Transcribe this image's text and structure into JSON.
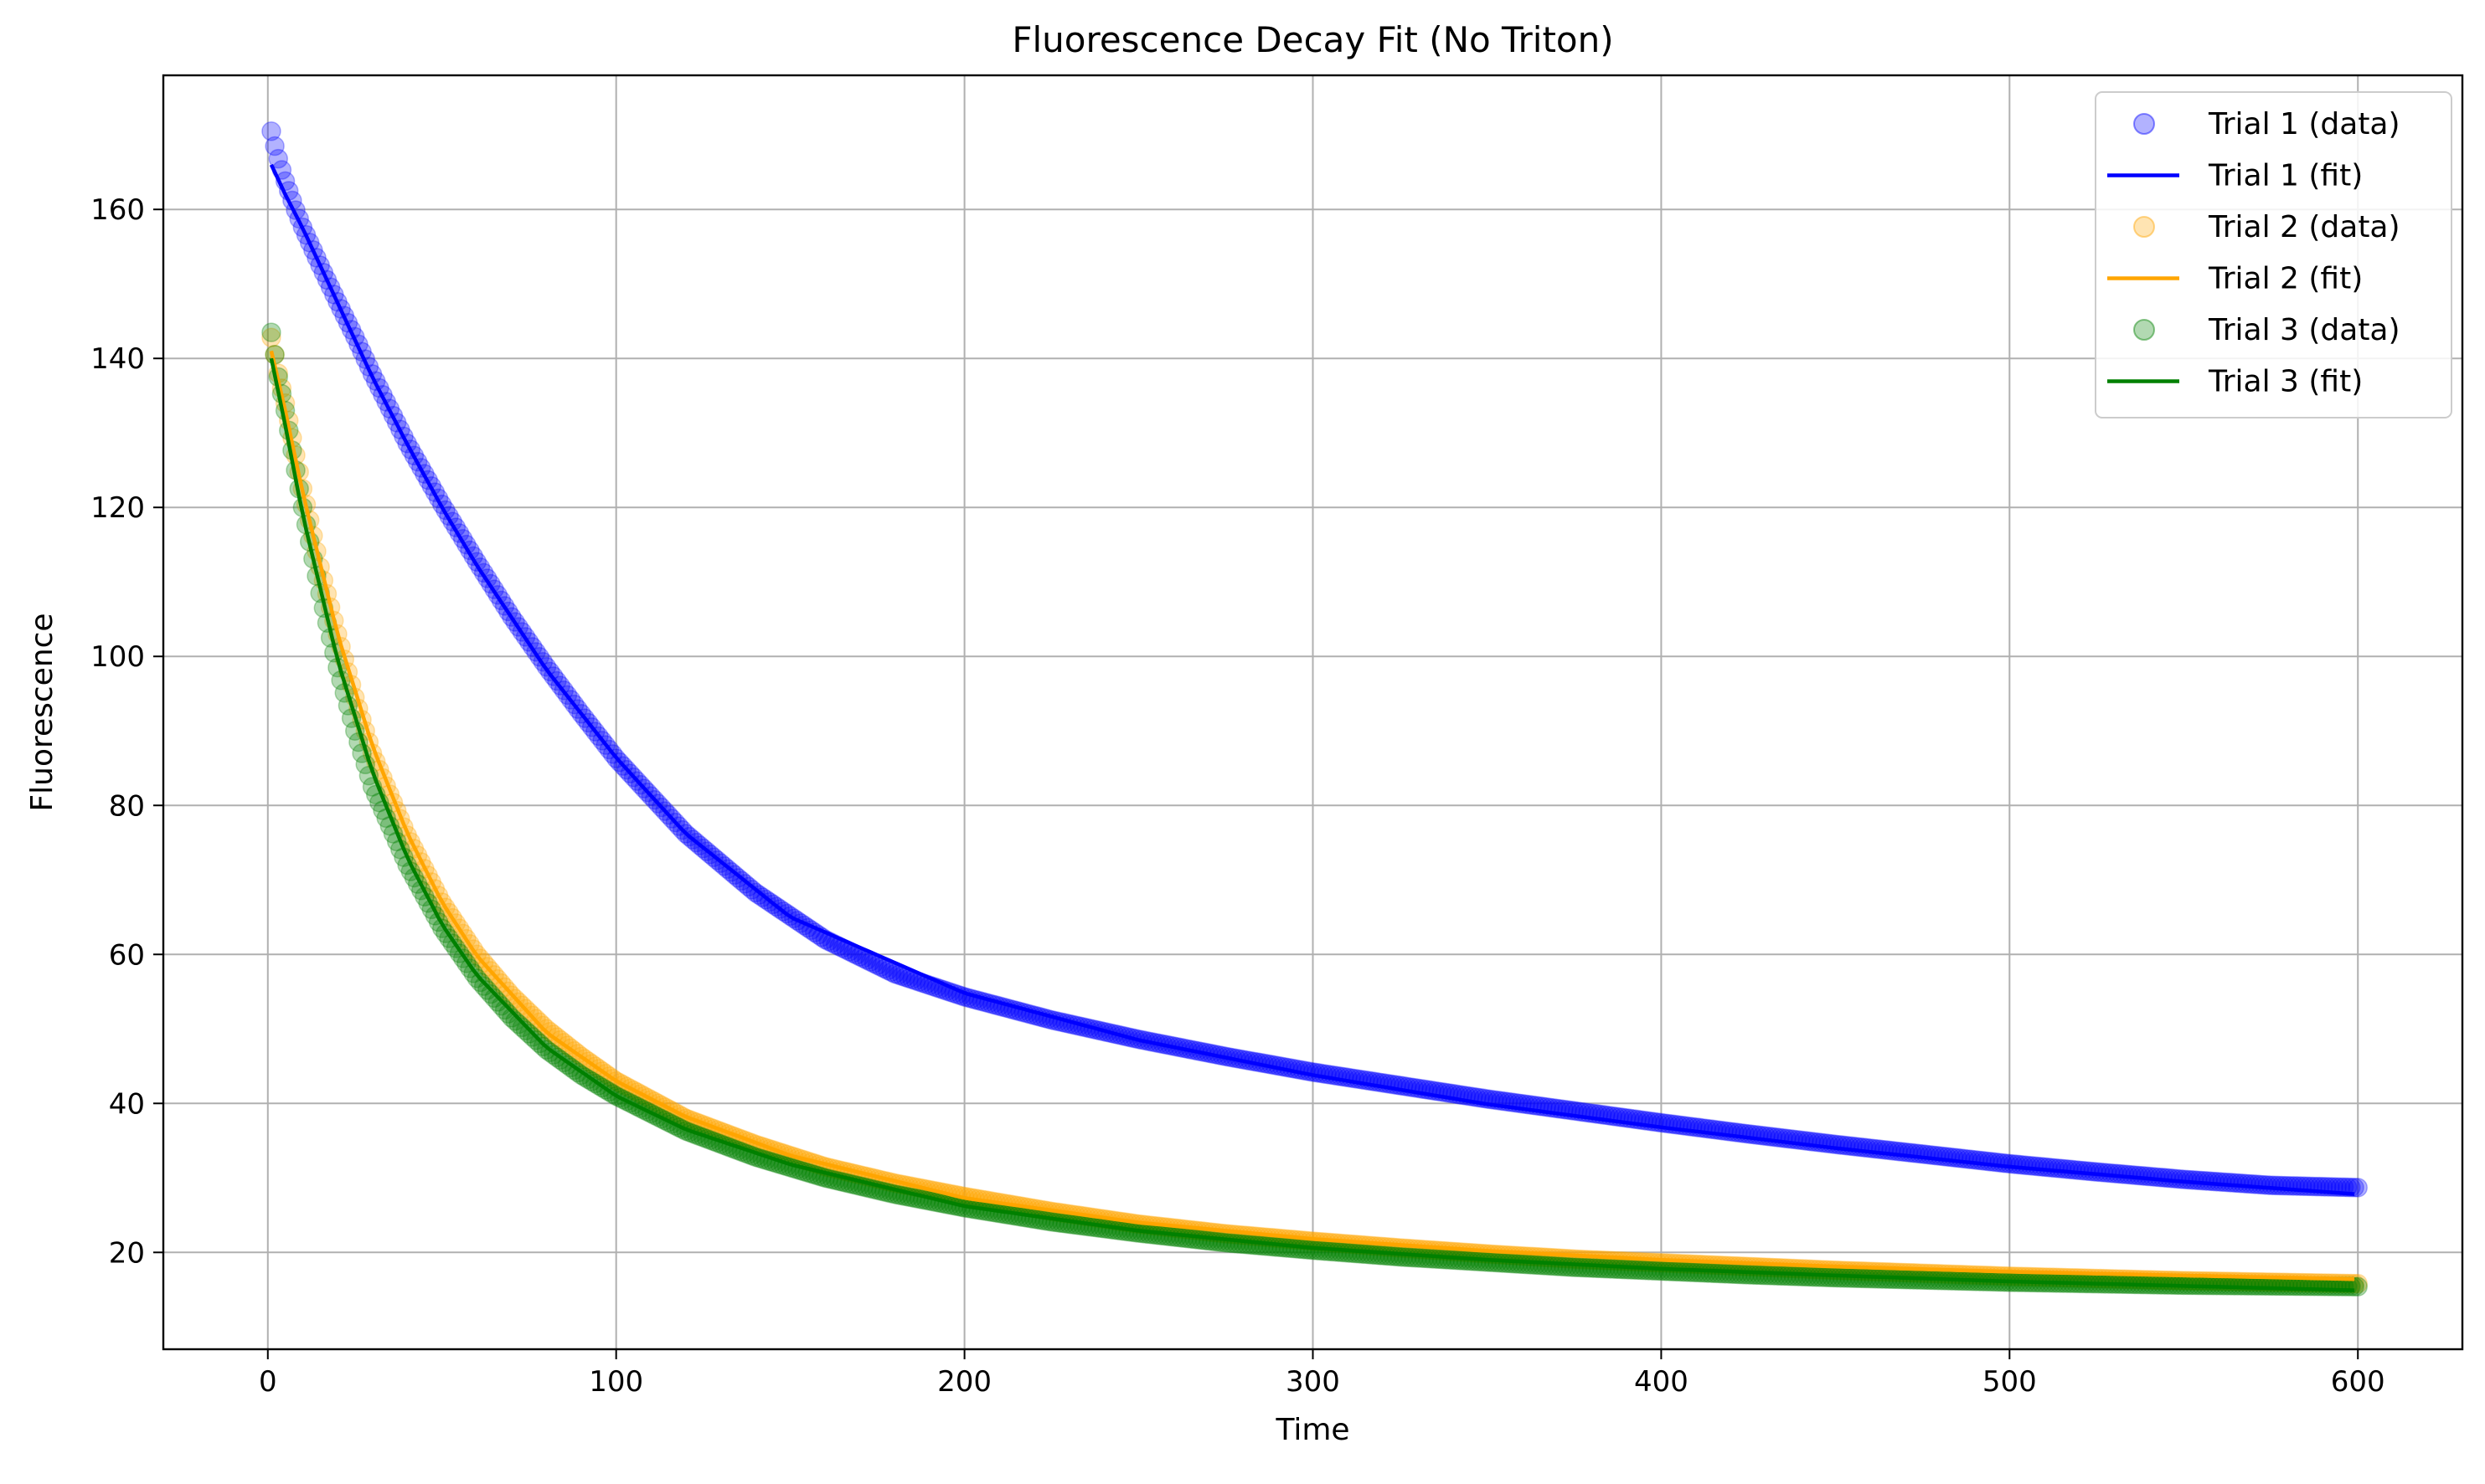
{
  "chart_data": {
    "type": "scatter",
    "title": "Fluorescence Decay Fit (No Triton)",
    "xlabel": "Time",
    "ylabel": "Fluorescence",
    "xlim": [
      -30,
      630
    ],
    "ylim": [
      7,
      178
    ],
    "xticks": [
      0,
      100,
      200,
      300,
      400,
      500,
      600
    ],
    "yticks": [
      20,
      40,
      60,
      80,
      100,
      120,
      140,
      160
    ],
    "grid": true,
    "legend_position": "top-right",
    "x_range": [
      1,
      600
    ],
    "series": [
      {
        "name": "Trial 1 (data)",
        "kind": "scatter",
        "color": "#0000ff",
        "x": [
          1,
          2,
          3,
          5,
          8,
          10,
          15,
          20,
          25,
          30,
          40,
          50,
          60,
          70,
          80,
          90,
          100,
          120,
          140,
          160,
          180,
          200,
          225,
          250,
          275,
          300,
          325,
          350,
          375,
          400,
          425,
          450,
          475,
          500,
          525,
          550,
          575,
          600
        ],
        "y": [
          170.5,
          168.5,
          166.8,
          163.8,
          159.9,
          157.6,
          152.5,
          147.6,
          142.9,
          137.9,
          128.6,
          120.4,
          112.7,
          105.3,
          98.6,
          92.3,
          86.3,
          76.2,
          68.3,
          62.0,
          57.4,
          54.3,
          51.2,
          48.6,
          46.3,
          44.2,
          42.4,
          40.6,
          39.0,
          37.4,
          35.9,
          34.5,
          33.2,
          31.9,
          30.8,
          29.8,
          29.0,
          28.7
        ]
      },
      {
        "name": "Trial 1 (fit)",
        "kind": "line",
        "color": "#0000ff",
        "x": [
          1,
          5,
          10,
          20,
          30,
          40,
          50,
          60,
          80,
          100,
          120,
          150,
          200,
          250,
          300,
          350,
          400,
          450,
          500,
          550,
          600
        ],
        "y": [
          166.0,
          162.0,
          157.5,
          147.5,
          137.5,
          128.5,
          120.0,
          112.2,
          98.2,
          86.4,
          76.2,
          65.0,
          54.8,
          48.5,
          43.8,
          39.9,
          36.8,
          34.0,
          31.5,
          29.5,
          27.8
        ]
      },
      {
        "name": "Trial 2 (data)",
        "kind": "scatter",
        "color": "#ffa500",
        "x": [
          1,
          2,
          3,
          5,
          8,
          10,
          15,
          20,
          25,
          30,
          40,
          50,
          60,
          70,
          80,
          90,
          100,
          120,
          140,
          160,
          180,
          200,
          225,
          250,
          275,
          300,
          325,
          350,
          375,
          400,
          425,
          450,
          475,
          500,
          525,
          550,
          575,
          600
        ],
        "y": [
          142.8,
          140.5,
          138.0,
          134.0,
          127.0,
          122.5,
          112.0,
          103.0,
          94.5,
          87.0,
          76.0,
          67.0,
          60.0,
          54.5,
          50.0,
          46.3,
          43.0,
          38.0,
          34.5,
          31.5,
          29.3,
          27.5,
          25.5,
          23.8,
          22.5,
          21.5,
          20.6,
          19.8,
          19.1,
          18.6,
          18.1,
          17.6,
          17.2,
          16.8,
          16.5,
          16.2,
          16.0,
          15.8
        ]
      },
      {
        "name": "Trial 2 (fit)",
        "kind": "line",
        "color": "#ffa500",
        "x": [
          1,
          5,
          10,
          20,
          30,
          40,
          50,
          60,
          80,
          100,
          120,
          150,
          200,
          250,
          300,
          350,
          400,
          450,
          500,
          550,
          600
        ],
        "y": [
          141.0,
          133.0,
          122.0,
          103.0,
          88.0,
          76.3,
          67.0,
          59.8,
          49.5,
          43.0,
          38.2,
          33.0,
          27.3,
          24.0,
          21.8,
          20.2,
          19.0,
          18.1,
          17.4,
          16.9,
          16.4
        ]
      },
      {
        "name": "Trial 3 (data)",
        "kind": "scatter",
        "color": "#008000",
        "x": [
          1,
          2,
          3,
          5,
          8,
          10,
          15,
          20,
          25,
          30,
          40,
          50,
          60,
          70,
          80,
          90,
          100,
          120,
          140,
          160,
          180,
          200,
          225,
          250,
          275,
          300,
          325,
          350,
          375,
          400,
          425,
          450,
          475,
          500,
          525,
          550,
          575,
          600
        ],
        "y": [
          143.5,
          140.5,
          137.5,
          133.0,
          125.0,
          120.0,
          108.5,
          98.5,
          90.0,
          82.5,
          72.0,
          63.5,
          56.8,
          51.5,
          47.2,
          43.8,
          41.0,
          36.3,
          32.8,
          30.0,
          27.8,
          26.0,
          24.1,
          22.6,
          21.3,
          20.3,
          19.4,
          18.7,
          18.0,
          17.5,
          17.0,
          16.6,
          16.3,
          16.0,
          15.8,
          15.6,
          15.5,
          15.4
        ]
      },
      {
        "name": "Trial 3 (fit)",
        "kind": "line",
        "color": "#008000",
        "x": [
          1,
          5,
          10,
          20,
          30,
          40,
          50,
          60,
          80,
          100,
          120,
          150,
          200,
          250,
          300,
          350,
          400,
          450,
          500,
          550,
          600
        ],
        "y": [
          140.0,
          131.0,
          119.0,
          99.5,
          84.5,
          73.0,
          64.0,
          57.2,
          47.5,
          41.0,
          36.5,
          31.8,
          26.2,
          22.9,
          20.6,
          19.0,
          17.8,
          16.9,
          16.1,
          15.5,
          14.9
        ]
      }
    ]
  }
}
